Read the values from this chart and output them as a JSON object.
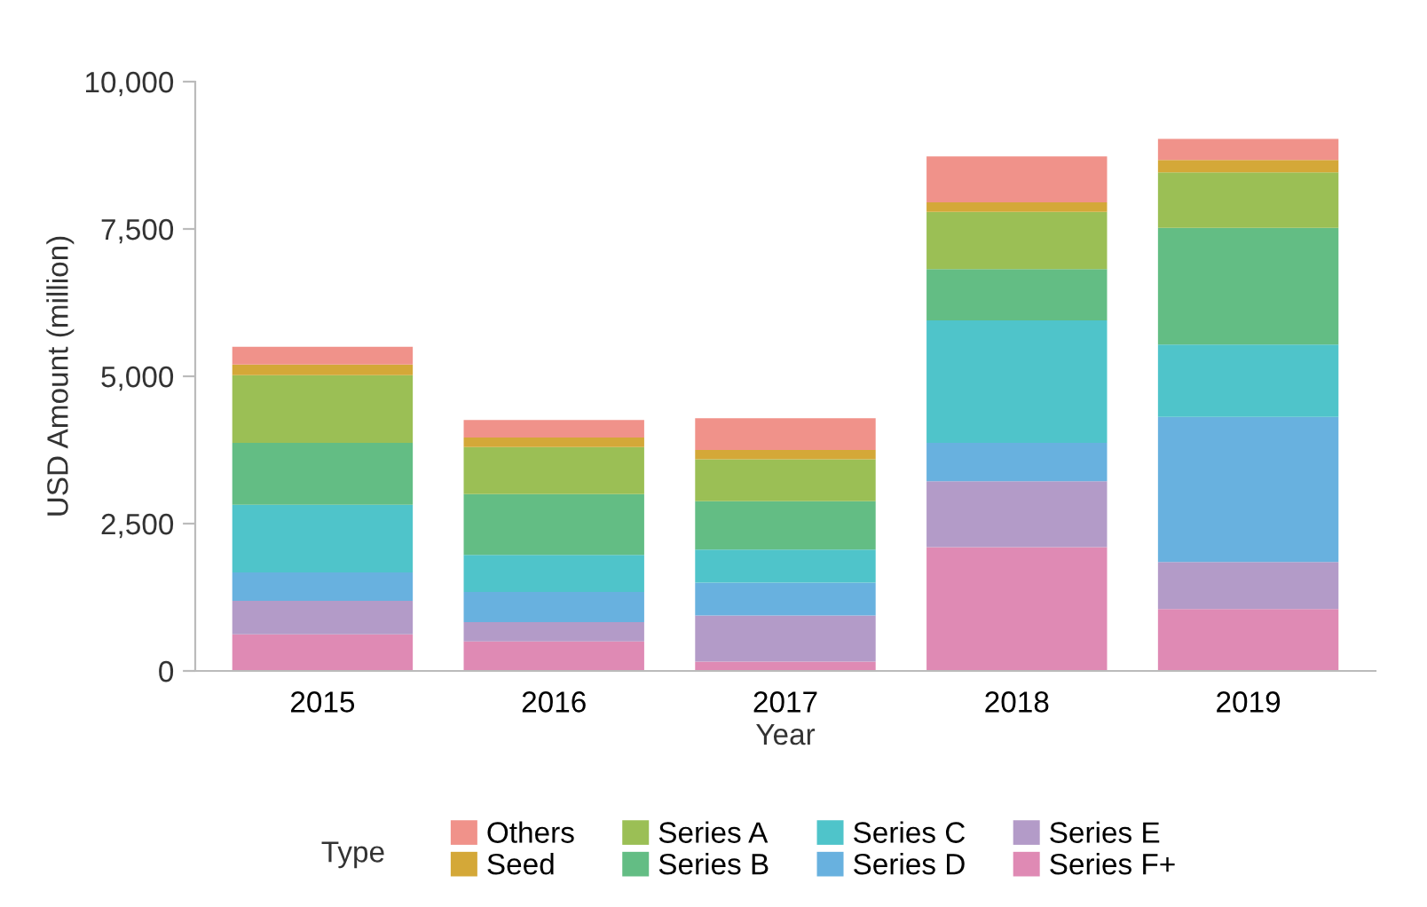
{
  "chart_data": {
    "type": "bar",
    "stacked": true,
    "xlabel": "Year",
    "ylabel": "USD Amount (million)",
    "legend_title": "Type",
    "legend": "bottom",
    "grid": false,
    "categories": [
      "2015",
      "2016",
      "2017",
      "2018",
      "2019"
    ],
    "ylim": [
      0,
      10000
    ],
    "yticks": [
      0,
      {
        "value": 2500,
        "label": "2,500"
      },
      {
        "value": 5000,
        "label": "5,000"
      },
      {
        "value": 7500,
        "label": "7,500"
      },
      {
        "value": 10000,
        "label": "10,000"
      }
    ],
    "series": [
      {
        "name": "Series F+",
        "color": "#df8ab4",
        "values": [
          620,
          500,
          160,
          2100,
          1050
        ]
      },
      {
        "name": "Series E",
        "color": "#b39bc8",
        "values": [
          570,
          330,
          780,
          1120,
          800
        ]
      },
      {
        "name": "Series D",
        "color": "#68b1df",
        "values": [
          480,
          510,
          560,
          650,
          2460
        ]
      },
      {
        "name": "Series C",
        "color": "#4fc4ca",
        "values": [
          1150,
          630,
          560,
          2080,
          1230
        ]
      },
      {
        "name": "Series B",
        "color": "#63bd84",
        "values": [
          1050,
          1030,
          820,
          870,
          1980
        ]
      },
      {
        "name": "Series A",
        "color": "#9bbf55",
        "values": [
          1150,
          800,
          710,
          970,
          940
        ]
      },
      {
        "name": "Seed",
        "color": "#d4a838",
        "values": [
          180,
          160,
          160,
          160,
          210
        ]
      },
      {
        "name": "Others",
        "color": "#f0928a",
        "values": [
          300,
          300,
          540,
          780,
          360
        ]
      }
    ]
  }
}
